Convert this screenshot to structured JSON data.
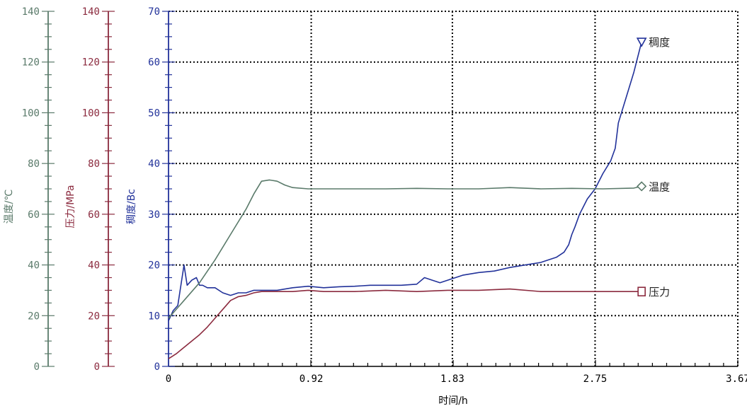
{
  "colors": {
    "temperature": "#5a7a6a",
    "pressure": "#8b2a3e",
    "consistency": "#22329a",
    "axis": "#000000"
  },
  "chart_data": {
    "type": "line",
    "grid": true,
    "legend": "inline-right",
    "xlabel": "时间/h",
    "xlim": [
      0,
      3.67
    ],
    "xticks": [
      0,
      0.92,
      1.83,
      2.75,
      3.67
    ],
    "xtick_labels": [
      "0",
      "0.92",
      "1.83",
      "2.75",
      "3.67"
    ],
    "axes": [
      {
        "key": "temperature",
        "label": "温度/℃",
        "lim": [
          0,
          140
        ],
        "ticks": [
          0,
          20,
          40,
          60,
          80,
          100,
          120,
          140
        ]
      },
      {
        "key": "pressure",
        "label": "压力/MPa",
        "lim": [
          0,
          140
        ],
        "ticks": [
          0,
          20,
          40,
          60,
          80,
          100,
          120,
          140
        ]
      },
      {
        "key": "consistency",
        "label": "稠度/Bc",
        "lim": [
          0,
          70
        ],
        "ticks": [
          0,
          10,
          20,
          30,
          40,
          50,
          60,
          70
        ]
      }
    ],
    "series": [
      {
        "name": "稠度",
        "axis": "consistency",
        "marker": "triangle-down",
        "x": [
          0,
          0.03,
          0.06,
          0.1,
          0.12,
          0.15,
          0.18,
          0.2,
          0.22,
          0.25,
          0.3,
          0.35,
          0.4,
          0.45,
          0.5,
          0.55,
          0.6,
          0.7,
          0.8,
          0.9,
          1.0,
          1.1,
          1.2,
          1.3,
          1.4,
          1.5,
          1.6,
          1.65,
          1.7,
          1.75,
          1.8,
          1.85,
          1.9,
          2.0,
          2.1,
          2.2,
          2.3,
          2.4,
          2.45,
          2.5,
          2.55,
          2.58,
          2.6,
          2.62,
          2.65,
          2.7,
          2.75,
          2.8,
          2.85,
          2.88,
          2.9,
          2.95,
          3.0,
          3.05
        ],
        "y": [
          9,
          11,
          12,
          20,
          16,
          17,
          17.5,
          16,
          16,
          15.5,
          15.5,
          14.5,
          14,
          14.5,
          14.5,
          15,
          15,
          15,
          15.5,
          15.8,
          15.5,
          15.7,
          15.8,
          16,
          16,
          16,
          16.2,
          17.5,
          17,
          16.5,
          17,
          17.5,
          18,
          18.5,
          18.8,
          19.5,
          20,
          20.5,
          21,
          21.5,
          22.5,
          24,
          26,
          27.5,
          30,
          33,
          35,
          38,
          40.5,
          43,
          48,
          53,
          58,
          64
        ]
      },
      {
        "name": "温度",
        "axis": "temperature",
        "marker": "diamond",
        "x": [
          0,
          0.1,
          0.2,
          0.3,
          0.4,
          0.5,
          0.55,
          0.6,
          0.65,
          0.7,
          0.75,
          0.8,
          0.9,
          1.0,
          1.2,
          1.4,
          1.6,
          1.8,
          2.0,
          2.2,
          2.4,
          2.6,
          2.8,
          3.0,
          3.05
        ],
        "y": [
          19,
          26,
          33,
          42,
          52,
          62,
          68,
          73,
          73.5,
          73,
          71.5,
          70.5,
          70,
          70,
          70,
          70,
          70.2,
          70,
          70,
          70.5,
          70,
          70.2,
          70,
          70.3,
          71
        ]
      },
      {
        "name": "压力",
        "axis": "pressure",
        "marker": "square",
        "x": [
          0,
          0.05,
          0.1,
          0.15,
          0.2,
          0.25,
          0.3,
          0.35,
          0.4,
          0.45,
          0.5,
          0.55,
          0.6,
          0.7,
          0.8,
          0.9,
          1.0,
          1.2,
          1.4,
          1.6,
          1.8,
          2.0,
          2.2,
          2.4,
          2.6,
          2.8,
          3.0,
          3.05
        ],
        "y": [
          3,
          5,
          7.5,
          10,
          12.5,
          15.5,
          19,
          22.5,
          26,
          27.5,
          28,
          29,
          29.5,
          29.5,
          29.5,
          30,
          29.5,
          29.5,
          30,
          29.5,
          30,
          30,
          30.5,
          29.5,
          29.5,
          29.5,
          29.5,
          29.5
        ]
      }
    ]
  }
}
